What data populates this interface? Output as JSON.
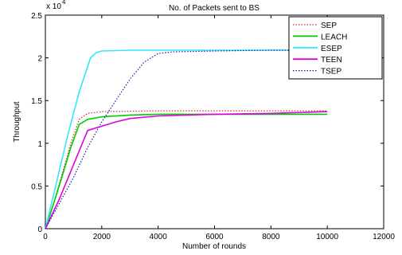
{
  "chart_data": {
    "type": "line",
    "title": "No. of Packets sent to BS",
    "xlabel": "Number of rounds",
    "ylabel": "Throughput",
    "y_exponent_label": "x 10",
    "y_exponent_power": "4",
    "xlim": [
      0,
      12000
    ],
    "ylim": [
      0,
      2.5
    ],
    "xticks": [
      "0",
      "2000",
      "4000",
      "6000",
      "8000",
      "10000",
      "12000"
    ],
    "yticks": [
      "0",
      "0.5",
      "1",
      "1.5",
      "2",
      "2.5"
    ],
    "grid": false,
    "legend_position": "top-right",
    "series": [
      {
        "name": "SEP",
        "color": "#d62728",
        "style": "dotted",
        "points": [
          [
            0,
            0
          ],
          [
            300,
            0.3
          ],
          [
            600,
            0.65
          ],
          [
            900,
            1.0
          ],
          [
            1200,
            1.28
          ],
          [
            1500,
            1.35
          ],
          [
            2000,
            1.37
          ],
          [
            4000,
            1.38
          ],
          [
            6000,
            1.38
          ],
          [
            8000,
            1.38
          ],
          [
            10000,
            1.38
          ]
        ]
      },
      {
        "name": "LEACH",
        "color": "#00cc00",
        "style": "solid",
        "points": [
          [
            0,
            0
          ],
          [
            300,
            0.3
          ],
          [
            600,
            0.62
          ],
          [
            900,
            0.95
          ],
          [
            1200,
            1.22
          ],
          [
            1500,
            1.28
          ],
          [
            2000,
            1.31
          ],
          [
            3000,
            1.33
          ],
          [
            4000,
            1.34
          ],
          [
            6000,
            1.34
          ],
          [
            8000,
            1.34
          ],
          [
            10000,
            1.34
          ]
        ]
      },
      {
        "name": "ESEP",
        "color": "#33e6ff",
        "style": "solid",
        "points": [
          [
            0,
            0
          ],
          [
            400,
            0.55
          ],
          [
            800,
            1.1
          ],
          [
            1200,
            1.6
          ],
          [
            1600,
            2.0
          ],
          [
            1800,
            2.06
          ],
          [
            2000,
            2.08
          ],
          [
            3000,
            2.09
          ],
          [
            6000,
            2.09
          ],
          [
            10000,
            2.09
          ]
        ]
      },
      {
        "name": "TEEN",
        "color": "#e000e0",
        "style": "solid",
        "points": [
          [
            0,
            0
          ],
          [
            500,
            0.35
          ],
          [
            1000,
            0.75
          ],
          [
            1500,
            1.15
          ],
          [
            2000,
            1.2
          ],
          [
            2500,
            1.25
          ],
          [
            3000,
            1.29
          ],
          [
            4000,
            1.32
          ],
          [
            6000,
            1.34
          ],
          [
            8000,
            1.35
          ],
          [
            10000,
            1.37
          ]
        ]
      },
      {
        "name": "TSEP",
        "color": "#1a1aa6",
        "style": "dotted",
        "points": [
          [
            0,
            0
          ],
          [
            500,
            0.3
          ],
          [
            1000,
            0.6
          ],
          [
            1500,
            0.95
          ],
          [
            2000,
            1.25
          ],
          [
            2500,
            1.5
          ],
          [
            3000,
            1.75
          ],
          [
            3500,
            1.95
          ],
          [
            4000,
            2.05
          ],
          [
            4500,
            2.07
          ],
          [
            6000,
            2.08
          ],
          [
            8000,
            2.09
          ],
          [
            10000,
            2.09
          ]
        ]
      }
    ]
  }
}
